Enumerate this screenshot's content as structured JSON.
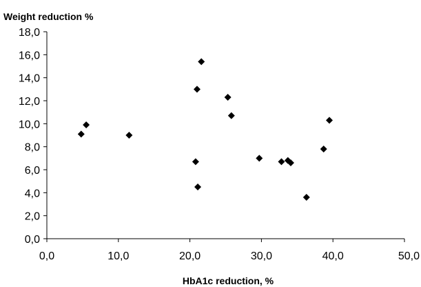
{
  "chart_data": {
    "type": "scatter",
    "ylabel": "Weight reduction %",
    "xlabel": "HbA1c reduction, %",
    "xlim": [
      0,
      50
    ],
    "ylim": [
      0,
      18
    ],
    "x_ticks": [
      "0,0",
      "10,0",
      "20,0",
      "30,0",
      "40,0",
      "50,0"
    ],
    "y_ticks": [
      "0,0",
      "2,0",
      "4,0",
      "6,0",
      "8,0",
      "10,0",
      "12,0",
      "14,0",
      "16,0",
      "18,0"
    ],
    "grid": false,
    "marker": "diamond",
    "colors": {
      "marker": "#000000",
      "axis": "#000000"
    },
    "points": [
      {
        "x": 4.8,
        "y": 9.1
      },
      {
        "x": 5.5,
        "y": 9.9
      },
      {
        "x": 11.5,
        "y": 9.0
      },
      {
        "x": 20.8,
        "y": 6.7
      },
      {
        "x": 21.0,
        "y": 13.0
      },
      {
        "x": 21.1,
        "y": 4.5
      },
      {
        "x": 21.6,
        "y": 15.4
      },
      {
        "x": 25.3,
        "y": 12.3
      },
      {
        "x": 25.8,
        "y": 10.7
      },
      {
        "x": 29.7,
        "y": 7.0
      },
      {
        "x": 32.8,
        "y": 6.7
      },
      {
        "x": 33.7,
        "y": 6.8
      },
      {
        "x": 34.1,
        "y": 6.6
      },
      {
        "x": 36.3,
        "y": 3.6
      },
      {
        "x": 38.7,
        "y": 7.8
      },
      {
        "x": 39.5,
        "y": 10.3
      }
    ]
  }
}
